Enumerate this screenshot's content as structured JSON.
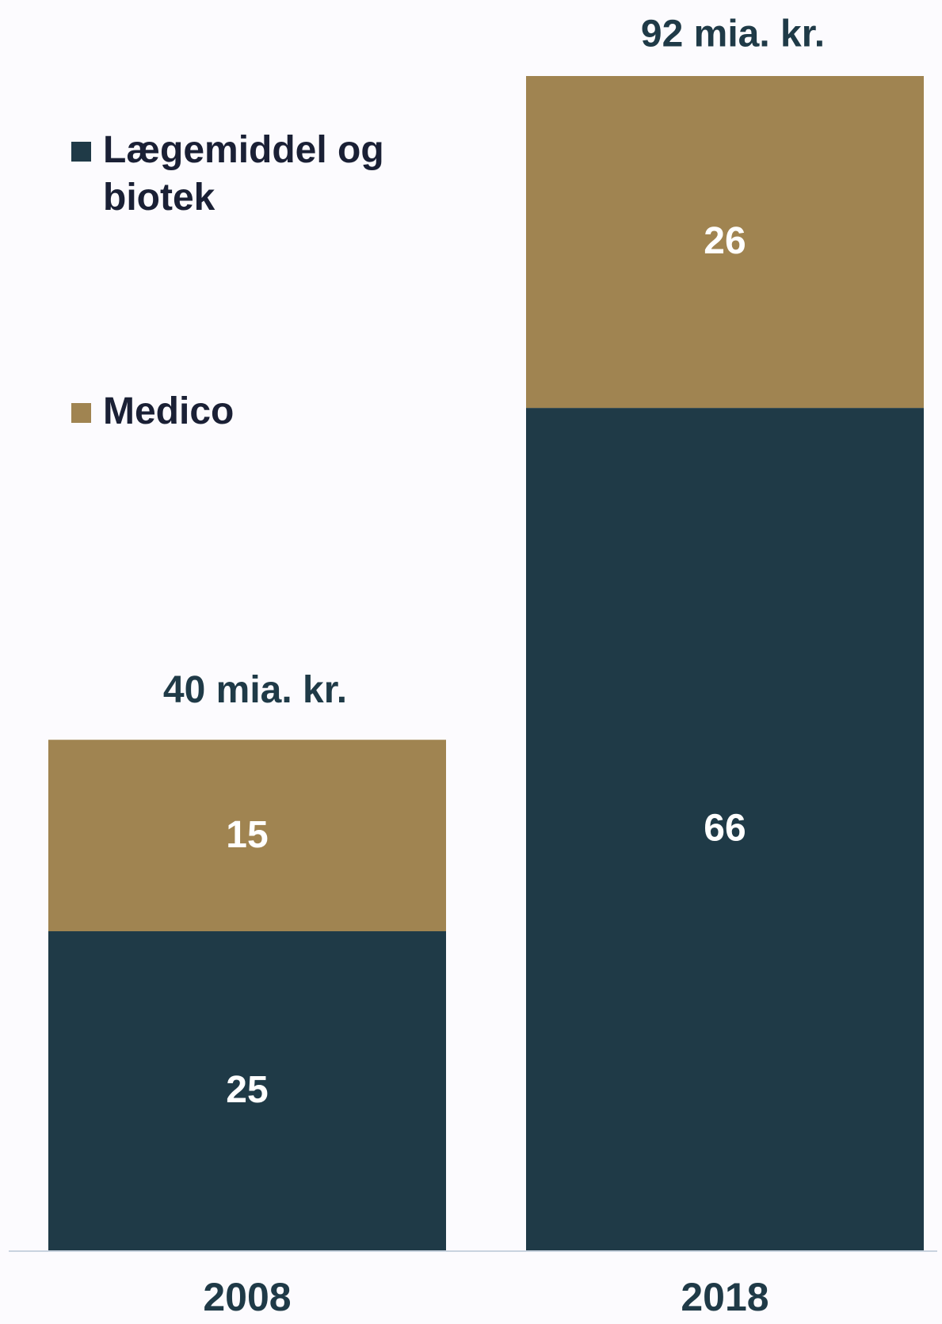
{
  "chart_data": {
    "type": "stacked_bar",
    "categories": [
      "2008",
      "2018"
    ],
    "series": [
      {
        "name": "Lægemiddel og biotek",
        "color": "#1f3a47",
        "values": [
          25,
          66
        ]
      },
      {
        "name": "Medico",
        "color": "#a08451",
        "values": [
          15,
          26
        ]
      }
    ],
    "total_labels": [
      "40 mia. kr.",
      "92 mia. kr."
    ],
    "ylim": [
      0,
      92
    ],
    "legend": "top-left"
  }
}
